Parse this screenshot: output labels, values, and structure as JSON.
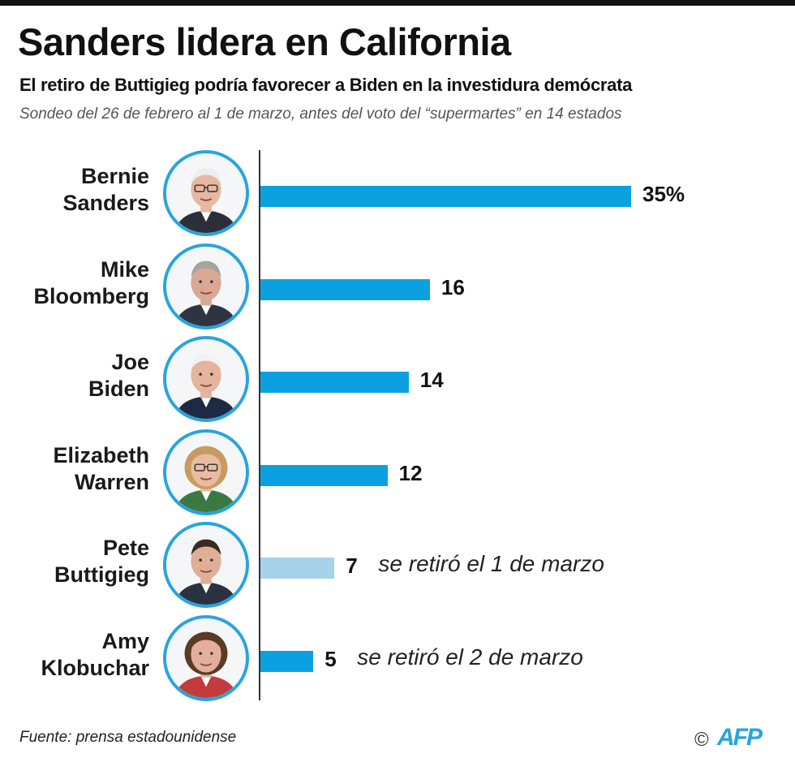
{
  "header": {
    "title": "Sanders lidera en California",
    "subtitle": "El retiro de Buttigieg podría favorecer a Biden en la investidura demócrata",
    "note": "Sondeo del 26 de febrero al 1 de marzo, antes del voto del “supermartes” en 14 estados"
  },
  "footer": {
    "source": "Fuente: prensa estadounidense",
    "copyright": "©",
    "logo": "AFP"
  },
  "colors": {
    "bar": "#0ba1e0",
    "bar_withdrawn": "#a6d2ec",
    "avatar_ring": "#29a4dc"
  },
  "chart_data": {
    "type": "bar",
    "orientation": "horizontal",
    "xlim": [
      0,
      35
    ],
    "grid": false,
    "categories": [
      "Bernie Sanders",
      "Mike Bloomberg",
      "Joe Biden",
      "Elizabeth Warren",
      "Pete Buttigieg",
      "Amy Klobuchar"
    ],
    "series": [
      {
        "values": [
          35,
          16,
          14,
          12,
          7,
          5
        ]
      }
    ],
    "candidates": [
      {
        "first": "Bernie",
        "last": "Sanders",
        "value": 35,
        "value_label": "35%",
        "remark": "",
        "withdrawn": false,
        "avatar_icon": "bernie-sanders-portrait-icon",
        "skin": "#e7b7a2",
        "hair": "#eeeeee",
        "suit": "#2b2f3a",
        "glasses": true
      },
      {
        "first": "Mike",
        "last": "Bloomberg",
        "value": 16,
        "value_label": "16",
        "remark": "",
        "withdrawn": false,
        "avatar_icon": "mike-bloomberg-portrait-icon",
        "skin": "#d9a893",
        "hair": "#a6a29c",
        "suit": "#2f3443",
        "glasses": false
      },
      {
        "first": "Joe",
        "last": "Biden",
        "value": 14,
        "value_label": "14",
        "remark": "",
        "withdrawn": false,
        "avatar_icon": "joe-biden-portrait-icon",
        "skin": "#e4b49e",
        "hair": "#f2f2f2",
        "suit": "#1e2a44",
        "glasses": false
      },
      {
        "first": "Elizabeth",
        "last": "Warren",
        "value": 12,
        "value_label": "12",
        "remark": "",
        "withdrawn": false,
        "avatar_icon": "elizabeth-warren-portrait-icon",
        "skin": "#e8bba3",
        "hair": "#c79a5f",
        "suit": "#3a7a42",
        "glasses": true
      },
      {
        "first": "Pete",
        "last": "Buttigieg",
        "value": 7,
        "value_label": "7",
        "remark": "se retiró el 1 de marzo",
        "withdrawn": true,
        "avatar_icon": "pete-buttigieg-portrait-icon",
        "skin": "#dfae97",
        "hair": "#3a2a22",
        "suit": "#2a3140",
        "glasses": false
      },
      {
        "first": "Amy",
        "last": "Klobuchar",
        "value": 5,
        "value_label": "5",
        "remark": "se retiró el 2 de marzo",
        "withdrawn": true,
        "avatar_icon": "amy-klobuchar-portrait-icon",
        "skin": "#e2b09a",
        "hair": "#5b3a26",
        "suit": "#c43b3b",
        "glasses": false
      }
    ]
  }
}
